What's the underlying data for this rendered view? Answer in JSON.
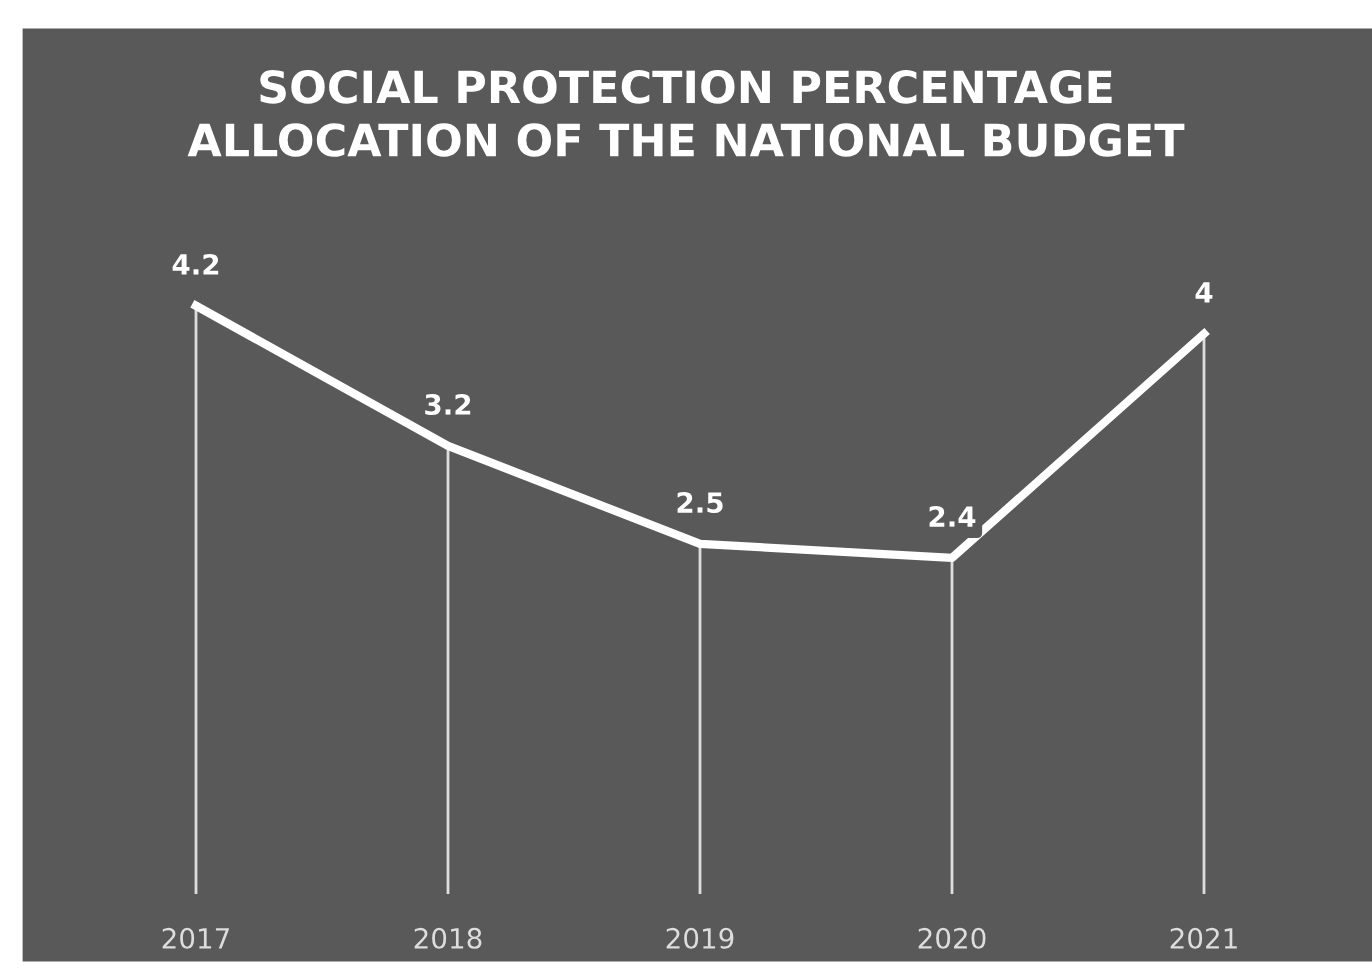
{
  "chart_data": {
    "type": "line",
    "title": "SOCIAL PROTECTION PERCENTAGE\nALLOCATION OF THE NATIONAL BUDGET",
    "categories": [
      "2017",
      "2018",
      "2019",
      "2020",
      "2021"
    ],
    "series": [
      {
        "color": "#ffffff",
        "values": [
          4.2,
          3.2,
          2.5,
          2.4,
          4
        ]
      }
    ],
    "data_labels": true,
    "grid": "x",
    "legend": false,
    "line_style": "solid",
    "tick_labels": "x"
  }
}
